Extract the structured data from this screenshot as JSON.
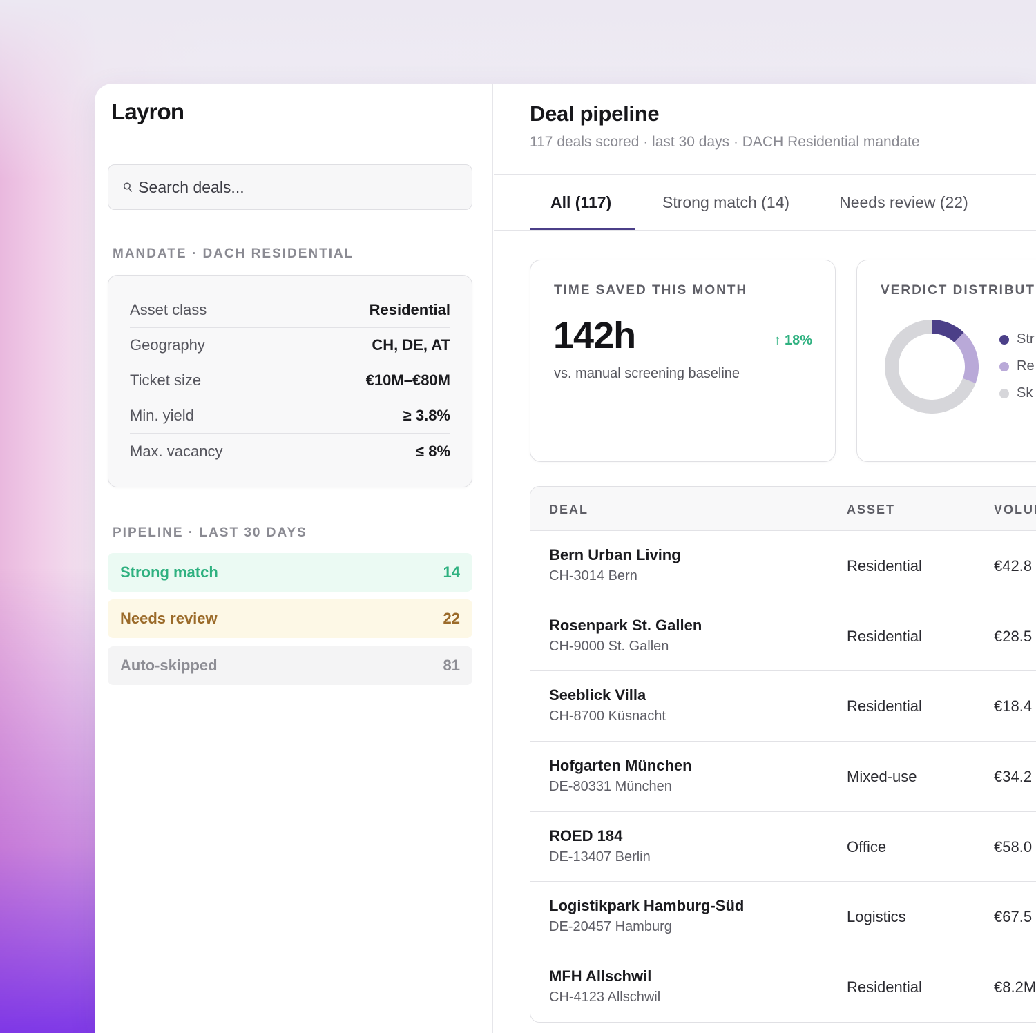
{
  "app": {
    "logo": "Layron"
  },
  "search": {
    "placeholder": "Search deals...",
    "icon": "search-icon"
  },
  "mandate": {
    "label": "MANDATE · DACH RESIDENTIAL",
    "rows": [
      {
        "key": "Asset class",
        "value": "Residential"
      },
      {
        "key": "Geography",
        "value": "CH, DE, AT"
      },
      {
        "key": "Ticket size",
        "value": "€10M–€80M"
      },
      {
        "key": "Min. yield",
        "value": "≥ 3.8%"
      },
      {
        "key": "Max. vacancy",
        "value": "≤ 8%"
      }
    ]
  },
  "pipeline": {
    "label": "PIPELINE · LAST 30 DAYS",
    "items": [
      {
        "label": "Strong match",
        "count": "14",
        "color": "#2fb180"
      },
      {
        "label": "Needs review",
        "count": "22",
        "color": "#9b6b2a"
      },
      {
        "label": "Auto-skipped",
        "count": "81",
        "color": "#8e8e95"
      }
    ]
  },
  "main": {
    "title": "Deal pipeline",
    "subtitle": "117 deals scored · last 30 days · DACH Residential mandate",
    "tabs": [
      {
        "label": "All (117)",
        "active": true
      },
      {
        "label": "Strong match (14)",
        "active": false
      },
      {
        "label": "Needs review (22)",
        "active": false
      }
    ],
    "accent": "#4b3f88"
  },
  "time_card": {
    "label": "TIME SAVED THIS MONTH",
    "value": "142h",
    "delta": "18%",
    "delta_icon": "arrow-up-icon",
    "note": "vs. manual screening baseline"
  },
  "verdict_card": {
    "label": "VERDICT DISTRIBUTI",
    "legend": [
      {
        "label": "Str",
        "color": "#4b3f88"
      },
      {
        "label": "Re",
        "color": "#b9a9d8"
      },
      {
        "label": "Sk",
        "color": "#d6d6da"
      }
    ],
    "chart_data": {
      "type": "pie",
      "categories": [
        "Strong match",
        "Needs review",
        "Auto-skipped"
      ],
      "values": [
        14,
        22,
        81
      ],
      "colors": [
        "#4b3f88",
        "#b9a9d8",
        "#d6d6da"
      ]
    }
  },
  "table": {
    "headers": {
      "deal": "DEAL",
      "asset": "ASSET",
      "volume": "VOLUM"
    },
    "rows": [
      {
        "name": "Bern Urban Living",
        "location": "CH-3014 Bern",
        "asset": "Residential",
        "volume": "€42.8"
      },
      {
        "name": "Rosenpark St. Gallen",
        "location": "CH-9000 St. Gallen",
        "asset": "Residential",
        "volume": "€28.5"
      },
      {
        "name": "Seeblick Villa",
        "location": "CH-8700 Küsnacht",
        "asset": "Residential",
        "volume": "€18.4"
      },
      {
        "name": "Hofgarten München",
        "location": "DE-80331 München",
        "asset": "Mixed-use",
        "volume": "€34.2"
      },
      {
        "name": "ROED 184",
        "location": "DE-13407 Berlin",
        "asset": "Office",
        "volume": "€58.0"
      },
      {
        "name": "Logistikpark Hamburg-Süd",
        "location": "DE-20457 Hamburg",
        "asset": "Logistics",
        "volume": "€67.5"
      },
      {
        "name": "MFH Allschwil",
        "location": "CH-4123 Allschwil",
        "asset": "Residential",
        "volume": "€8.2M"
      }
    ]
  }
}
